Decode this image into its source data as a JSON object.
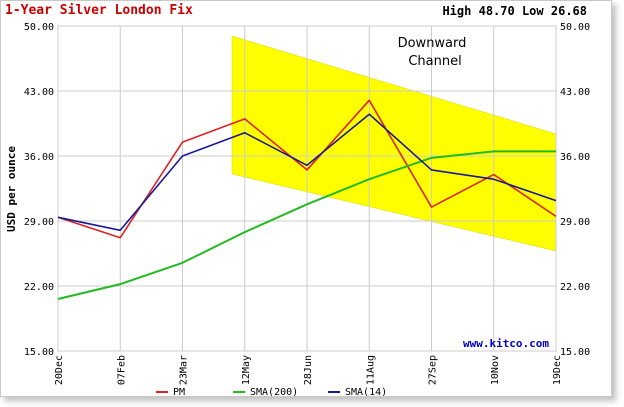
{
  "header": {
    "title": "1-Year Silver London Fix",
    "high_label": "High",
    "high_value": "48.70",
    "low_label": "Low",
    "low_value": "26.68"
  },
  "annotation": {
    "line1": "Downward",
    "line2": "Channel"
  },
  "watermark": "www.kitco.com",
  "colors": {
    "pm": "#dd2222",
    "sma200": "#22bb22",
    "sma14": "#1a1a99",
    "channel": "#ffff00",
    "title": "#cc0000",
    "watermark": "#0000cc"
  },
  "chart_data": {
    "type": "line",
    "title": "1-Year Silver London Fix",
    "ylabel": "USD per ounce",
    "xlabel": "",
    "ylim": [
      15,
      50
    ],
    "y_ticks": [
      "50.00",
      "43.00",
      "36.00",
      "29.00",
      "22.00",
      "15.00"
    ],
    "x_ticks": [
      "20Dec",
      "07Feb",
      "23Mar",
      "12May",
      "28Jun",
      "11Aug",
      "27Sep",
      "10Nov",
      "19Dec"
    ],
    "grid": true,
    "legend_position": "bottom",
    "series": [
      {
        "name": "PM",
        "color": "#dd2222",
        "points": [
          [
            "20Dec",
            29.4
          ],
          [
            "07Feb",
            27.2
          ],
          [
            "23Mar",
            37.5
          ],
          [
            "12May",
            40.0
          ],
          [
            "28Jun",
            34.5
          ],
          [
            "11Aug",
            42.0
          ],
          [
            "27Sep",
            30.5
          ],
          [
            "10Nov",
            34.0
          ],
          [
            "19Dec",
            29.5
          ]
        ]
      },
      {
        "name": "SMA(200)",
        "color": "#22bb22",
        "points": [
          [
            "20Dec",
            20.6
          ],
          [
            "07Feb",
            22.2
          ],
          [
            "23Mar",
            24.5
          ],
          [
            "12May",
            27.8
          ],
          [
            "28Jun",
            30.8
          ],
          [
            "11Aug",
            33.5
          ],
          [
            "27Sep",
            35.8
          ],
          [
            "10Nov",
            36.5
          ],
          [
            "19Dec",
            36.5
          ]
        ]
      },
      {
        "name": "SMA(14)",
        "color": "#1a1a99",
        "points": [
          [
            "20Dec",
            29.4
          ],
          [
            "07Feb",
            28.0
          ],
          [
            "23Mar",
            36.0
          ],
          [
            "12May",
            38.5
          ],
          [
            "28Jun",
            35.0
          ],
          [
            "11Aug",
            40.5
          ],
          [
            "27Sep",
            34.5
          ],
          [
            "10Nov",
            33.5
          ],
          [
            "19Dec",
            31.2
          ]
        ]
      }
    ],
    "annotations": [
      "Downward Channel",
      "www.kitco.com"
    ],
    "legend": [
      "PM",
      "SMA(200)",
      "SMA(14)"
    ]
  }
}
